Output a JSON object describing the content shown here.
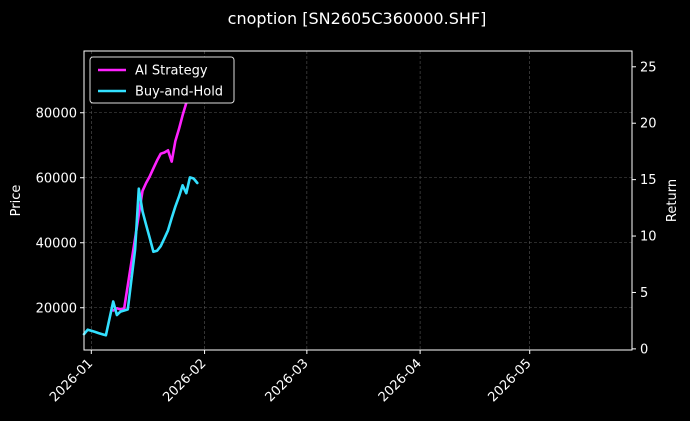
{
  "chart_data": {
    "type": "line",
    "title": "cnoption [SN2605C360000.SHF]",
    "ylabel": "Price",
    "y2label": "Return",
    "x_ticks": [
      "2026-01",
      "2026-02",
      "2026-03",
      "2026-04",
      "2026-05"
    ],
    "x_range": [
      "2025-12-30",
      "2026-05-29"
    ],
    "y_ticks": [
      20000,
      40000,
      60000,
      80000
    ],
    "y_range": [
      7000,
      99000
    ],
    "y2_ticks": [
      0,
      5,
      10,
      15,
      20,
      25
    ],
    "y2_range": [
      -0.1,
      26.4
    ],
    "grid": true,
    "legend_position": "top-left",
    "series": [
      {
        "name": "AI Strategy",
        "color": "#ff22ff",
        "axis": "right",
        "points": [
          [
            "2026-01-07",
            3.4
          ],
          [
            "2026-01-08",
            3.6
          ],
          [
            "2026-01-09",
            3.5
          ],
          [
            "2026-01-10",
            3.6
          ],
          [
            "2026-01-15",
            14.0
          ],
          [
            "2026-01-16",
            14.7
          ],
          [
            "2026-01-17",
            15.3
          ],
          [
            "2026-01-18",
            16.0
          ],
          [
            "2026-01-19",
            16.7
          ],
          [
            "2026-01-20",
            17.3
          ],
          [
            "2026-01-21",
            17.4
          ],
          [
            "2026-01-22",
            17.6
          ],
          [
            "2026-01-23",
            16.6
          ],
          [
            "2026-01-24",
            18.4
          ],
          [
            "2026-01-25",
            19.5
          ],
          [
            "2026-01-26",
            20.7
          ],
          [
            "2026-01-27",
            21.8
          ],
          [
            "2026-01-28",
            22.5
          ]
        ]
      },
      {
        "name": "Buy-and-Hold",
        "color": "#33e0ff",
        "axis": "right",
        "points": [
          [
            "2025-12-30",
            1.3
          ],
          [
            "2025-12-31",
            1.7
          ],
          [
            "2026-01-01",
            1.6
          ],
          [
            "2026-01-02",
            1.5
          ],
          [
            "2026-01-03",
            1.4
          ],
          [
            "2026-01-04",
            1.3
          ],
          [
            "2026-01-05",
            1.2
          ],
          [
            "2026-01-07",
            4.2
          ],
          [
            "2026-01-08",
            3.0
          ],
          [
            "2026-01-09",
            3.3
          ],
          [
            "2026-01-10",
            3.4
          ],
          [
            "2026-01-11",
            3.5
          ],
          [
            "2026-01-12",
            6.2
          ],
          [
            "2026-01-13",
            8.8
          ],
          [
            "2026-01-14",
            14.2
          ],
          [
            "2026-01-15",
            12.2
          ],
          [
            "2026-01-16",
            11.0
          ],
          [
            "2026-01-17",
            9.8
          ],
          [
            "2026-01-18",
            8.6
          ],
          [
            "2026-01-19",
            8.7
          ],
          [
            "2026-01-20",
            9.1
          ],
          [
            "2026-01-21",
            9.8
          ],
          [
            "2026-01-22",
            10.5
          ],
          [
            "2026-01-23",
            11.6
          ],
          [
            "2026-01-24",
            12.6
          ],
          [
            "2026-01-25",
            13.5
          ],
          [
            "2026-01-26",
            14.5
          ],
          [
            "2026-01-27",
            13.8
          ],
          [
            "2026-01-28",
            15.2
          ],
          [
            "2026-01-29",
            15.1
          ],
          [
            "2026-01-30",
            14.7
          ]
        ]
      }
    ]
  }
}
